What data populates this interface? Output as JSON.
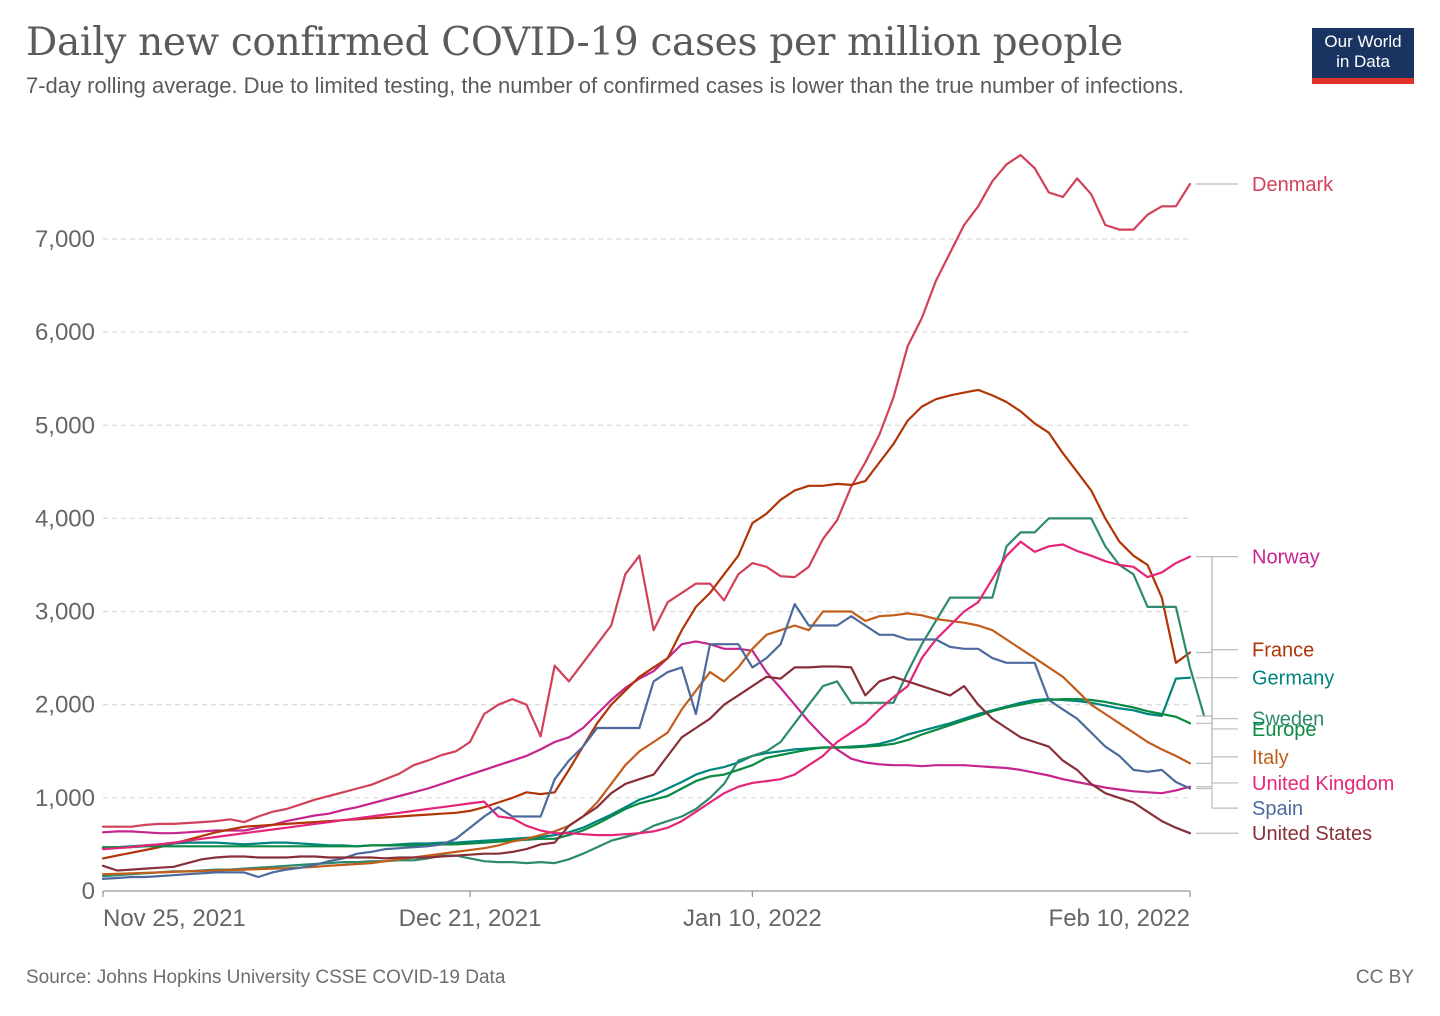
{
  "header": {
    "title": "Daily new confirmed COVID-19 cases per million people",
    "subtitle": "7-day rolling average. Due to limited testing, the number of confirmed cases is lower than the true number of infections.",
    "logo_line1": "Our World",
    "logo_line2": "in Data"
  },
  "footer": {
    "source": "Source: Johns Hopkins University CSSE COVID-19 Data",
    "license": "CC BY"
  },
  "chart_data": {
    "type": "line",
    "xlabel": "",
    "ylabel": "",
    "x_ticks": [
      {
        "label": "Nov 25, 2021",
        "day": 0
      },
      {
        "label": "Dec 21, 2021",
        "day": 26
      },
      {
        "label": "Jan 10, 2022",
        "day": 46
      },
      {
        "label": "Feb 10, 2022",
        "day": 77
      }
    ],
    "x_range": [
      "Nov 25, 2021",
      "Feb 10, 2022"
    ],
    "ylim": [
      0,
      8000
    ],
    "y_ticks": [
      {
        "label": "0",
        "value": 0
      },
      {
        "label": "1,000",
        "value": 1000
      },
      {
        "label": "2,000",
        "value": 2000
      },
      {
        "label": "3,000",
        "value": 3000
      },
      {
        "label": "4,000",
        "value": 4000
      },
      {
        "label": "5,000",
        "value": 5000
      },
      {
        "label": "6,000",
        "value": 6000
      },
      {
        "label": "7,000",
        "value": 7000
      }
    ],
    "grid": "horizontal dashed",
    "legend": "right, labels at line ends",
    "series": [
      {
        "name": "Denmark",
        "color": "#d2415a",
        "values": [
          690,
          690,
          690,
          710,
          720,
          720,
          730,
          740,
          750,
          770,
          740,
          800,
          850,
          880,
          930,
          980,
          1020,
          1060,
          1100,
          1140,
          1200,
          1260,
          1350,
          1400,
          1460,
          1500,
          1600,
          1900,
          2000,
          2060,
          2000,
          1660,
          2420,
          2250,
          2450,
          2650,
          2850,
          3400,
          3600,
          2800,
          3100,
          3200,
          3300,
          3300,
          3120,
          3400,
          3520,
          3480,
          3380,
          3370,
          3480,
          3780,
          3980,
          4340,
          4600,
          4900,
          5300,
          5850,
          6150,
          6550,
          6850,
          7150,
          7350,
          7620,
          7800,
          7900,
          7760,
          7500,
          7450,
          7650,
          7480,
          7150,
          7100,
          7100,
          7260,
          7350,
          7350,
          7590
        ]
      },
      {
        "name": "Norway",
        "color": "#c6248f",
        "values": [
          630,
          640,
          640,
          630,
          620,
          620,
          630,
          640,
          650,
          650,
          650,
          680,
          710,
          750,
          780,
          810,
          830,
          870,
          900,
          940,
          980,
          1020,
          1060,
          1100,
          1150,
          1200,
          1250,
          1300,
          1350,
          1400,
          1450,
          1520,
          1600,
          1650,
          1750,
          1900,
          2050,
          2180,
          2280,
          2360,
          2500,
          2650,
          2680,
          2650,
          2600,
          2600,
          2580,
          2350,
          2180,
          2000,
          1820,
          1660,
          1520,
          1420,
          1380,
          1360,
          1350,
          1350,
          1340,
          1350,
          1350,
          1350,
          1340,
          1330,
          1320,
          1300,
          1270,
          1240,
          1200,
          1170,
          1140,
          1110,
          1090,
          1070,
          1060,
          1050,
          1080,
          1120
        ]
      },
      {
        "name": "France",
        "color": "#b13507",
        "values": [
          350,
          380,
          410,
          440,
          470,
          510,
          550,
          590,
          630,
          660,
          690,
          700,
          710,
          720,
          730,
          740,
          750,
          760,
          770,
          780,
          790,
          800,
          810,
          820,
          830,
          840,
          860,
          900,
          950,
          1000,
          1060,
          1040,
          1060,
          1300,
          1550,
          1800,
          2000,
          2150,
          2300,
          2400,
          2500,
          2800,
          3050,
          3200,
          3400,
          3600,
          3950,
          4050,
          4200,
          4300,
          4350,
          4350,
          4370,
          4360,
          4400,
          4600,
          4800,
          5050,
          5200,
          5280,
          5320,
          5350,
          5380,
          5320,
          5250,
          5150,
          5020,
          4920,
          4700,
          4500,
          4300,
          4000,
          3750,
          3600,
          3500,
          3150,
          2450,
          2560
        ]
      },
      {
        "name": "Germany",
        "color": "#00847e",
        "values": [
          460,
          470,
          480,
          490,
          500,
          510,
          520,
          520,
          520,
          510,
          500,
          510,
          520,
          520,
          510,
          500,
          490,
          490,
          480,
          490,
          490,
          500,
          510,
          510,
          520,
          520,
          530,
          540,
          550,
          560,
          570,
          580,
          600,
          630,
          680,
          750,
          820,
          900,
          980,
          1030,
          1100,
          1170,
          1250,
          1300,
          1330,
          1380,
          1450,
          1480,
          1500,
          1520,
          1530,
          1540,
          1540,
          1550,
          1560,
          1580,
          1620,
          1680,
          1720,
          1760,
          1800,
          1850,
          1900,
          1940,
          1980,
          2020,
          2050,
          2060,
          2050,
          2040,
          2020,
          1990,
          1960,
          1940,
          1900,
          1880,
          2280,
          2290
        ]
      },
      {
        "name": "Sweden",
        "color": "#2d8a6e",
        "values": [
          160,
          170,
          180,
          190,
          200,
          210,
          210,
          220,
          230,
          230,
          240,
          250,
          260,
          270,
          280,
          290,
          300,
          310,
          310,
          320,
          320,
          330,
          330,
          350,
          380,
          380,
          350,
          320,
          310,
          310,
          300,
          310,
          300,
          340,
          400,
          470,
          540,
          580,
          620,
          700,
          750,
          800,
          880,
          1000,
          1150,
          1400,
          1450,
          1500,
          1600,
          1800,
          2000,
          2200,
          2250,
          2020,
          2020,
          2020,
          2020,
          2350,
          2650,
          2900,
          3150,
          3150,
          3150,
          3150,
          3700,
          3850,
          3850,
          4000,
          4000,
          4000,
          4000,
          3700,
          3500,
          3400,
          3050,
          3050,
          3050,
          2400,
          1880
        ]
      },
      {
        "name": "Europe",
        "color": "#0a8a43",
        "values": [
          470,
          470,
          470,
          480,
          480,
          480,
          480,
          480,
          480,
          480,
          480,
          480,
          480,
          480,
          480,
          480,
          480,
          480,
          480,
          490,
          490,
          490,
          490,
          490,
          500,
          500,
          510,
          520,
          530,
          540,
          550,
          560,
          560,
          600,
          650,
          720,
          800,
          880,
          940,
          980,
          1020,
          1100,
          1180,
          1230,
          1250,
          1300,
          1350,
          1430,
          1460,
          1490,
          1520,
          1540,
          1540,
          1540,
          1550,
          1560,
          1580,
          1620,
          1680,
          1730,
          1780,
          1830,
          1880,
          1930,
          1970,
          2000,
          2030,
          2050,
          2060,
          2060,
          2050,
          2030,
          2000,
          1970,
          1930,
          1900,
          1870,
          1800
        ]
      },
      {
        "name": "Italy",
        "color": "#c15e1b",
        "values": [
          180,
          185,
          190,
          195,
          200,
          205,
          210,
          215,
          220,
          225,
          230,
          235,
          240,
          245,
          250,
          260,
          270,
          280,
          290,
          300,
          320,
          340,
          360,
          380,
          400,
          420,
          440,
          460,
          490,
          530,
          560,
          600,
          640,
          700,
          800,
          950,
          1150,
          1350,
          1500,
          1600,
          1700,
          1950,
          2150,
          2350,
          2250,
          2400,
          2600,
          2750,
          2800,
          2850,
          2800,
          3000,
          3000,
          3000,
          2900,
          2950,
          2960,
          2980,
          2960,
          2920,
          2900,
          2880,
          2850,
          2800,
          2700,
          2600,
          2500,
          2400,
          2300,
          2150,
          2000,
          1900,
          1800,
          1700,
          1600,
          1520,
          1450,
          1370
        ]
      },
      {
        "name": "United Kingdom",
        "color": "#e5257a",
        "values": [
          450,
          460,
          470,
          490,
          500,
          520,
          540,
          560,
          580,
          600,
          620,
          640,
          660,
          680,
          700,
          720,
          740,
          760,
          780,
          800,
          820,
          840,
          860,
          880,
          900,
          920,
          940,
          960,
          800,
          780,
          700,
          650,
          620,
          620,
          610,
          600,
          600,
          610,
          620,
          640,
          680,
          750,
          850,
          950,
          1050,
          1120,
          1160,
          1180,
          1200,
          1250,
          1350,
          1450,
          1600,
          1700,
          1800,
          1950,
          2080,
          2200,
          2500,
          2700,
          2850,
          3000,
          3100,
          3350,
          3600,
          3750,
          3640,
          3700,
          3720,
          3650,
          3600,
          3540,
          3500,
          3480,
          3370,
          3420,
          3520,
          3590
        ]
      },
      {
        "name": "Spain",
        "color": "#4c6a9c",
        "values": [
          130,
          140,
          150,
          150,
          160,
          170,
          180,
          190,
          200,
          200,
          200,
          150,
          200,
          230,
          250,
          280,
          320,
          350,
          400,
          420,
          450,
          460,
          470,
          480,
          500,
          560,
          680,
          800,
          900,
          800,
          800,
          800,
          1200,
          1400,
          1550,
          1750,
          1750,
          1750,
          1750,
          2250,
          2350,
          2400,
          1900,
          2650,
          2650,
          2650,
          2400,
          2500,
          2650,
          3080,
          2850,
          2850,
          2850,
          2950,
          2850,
          2750,
          2750,
          2700,
          2700,
          2700,
          2620,
          2600,
          2600,
          2500,
          2450,
          2450,
          2450,
          2050,
          1950,
          1850,
          1700,
          1550,
          1450,
          1300,
          1280,
          1300,
          1170,
          1100
        ]
      },
      {
        "name": "United States",
        "color": "#883039",
        "values": [
          270,
          220,
          230,
          240,
          250,
          260,
          300,
          340,
          360,
          370,
          370,
          360,
          360,
          360,
          370,
          370,
          360,
          360,
          360,
          360,
          350,
          360,
          360,
          360,
          370,
          380,
          390,
          400,
          400,
          420,
          450,
          500,
          520,
          700,
          800,
          900,
          1050,
          1150,
          1200,
          1250,
          1450,
          1650,
          1750,
          1850,
          2000,
          2100,
          2200,
          2300,
          2280,
          2400,
          2400,
          2410,
          2410,
          2400,
          2100,
          2250,
          2300,
          2250,
          2200,
          2150,
          2100,
          2200,
          2000,
          1850,
          1750,
          1650,
          1600,
          1550,
          1400,
          1300,
          1150,
          1050,
          1000,
          950,
          850,
          750,
          680,
          620
        ]
      }
    ],
    "label_y_values": {
      "Denmark": 7590,
      "Norway": 3590,
      "France": 2590,
      "Germany": 2290,
      "Sweden": 1850,
      "Europe": 1740,
      "Italy": 1440,
      "United Kingdom": 1160,
      "Spain": 890,
      "United States": 620
    }
  }
}
